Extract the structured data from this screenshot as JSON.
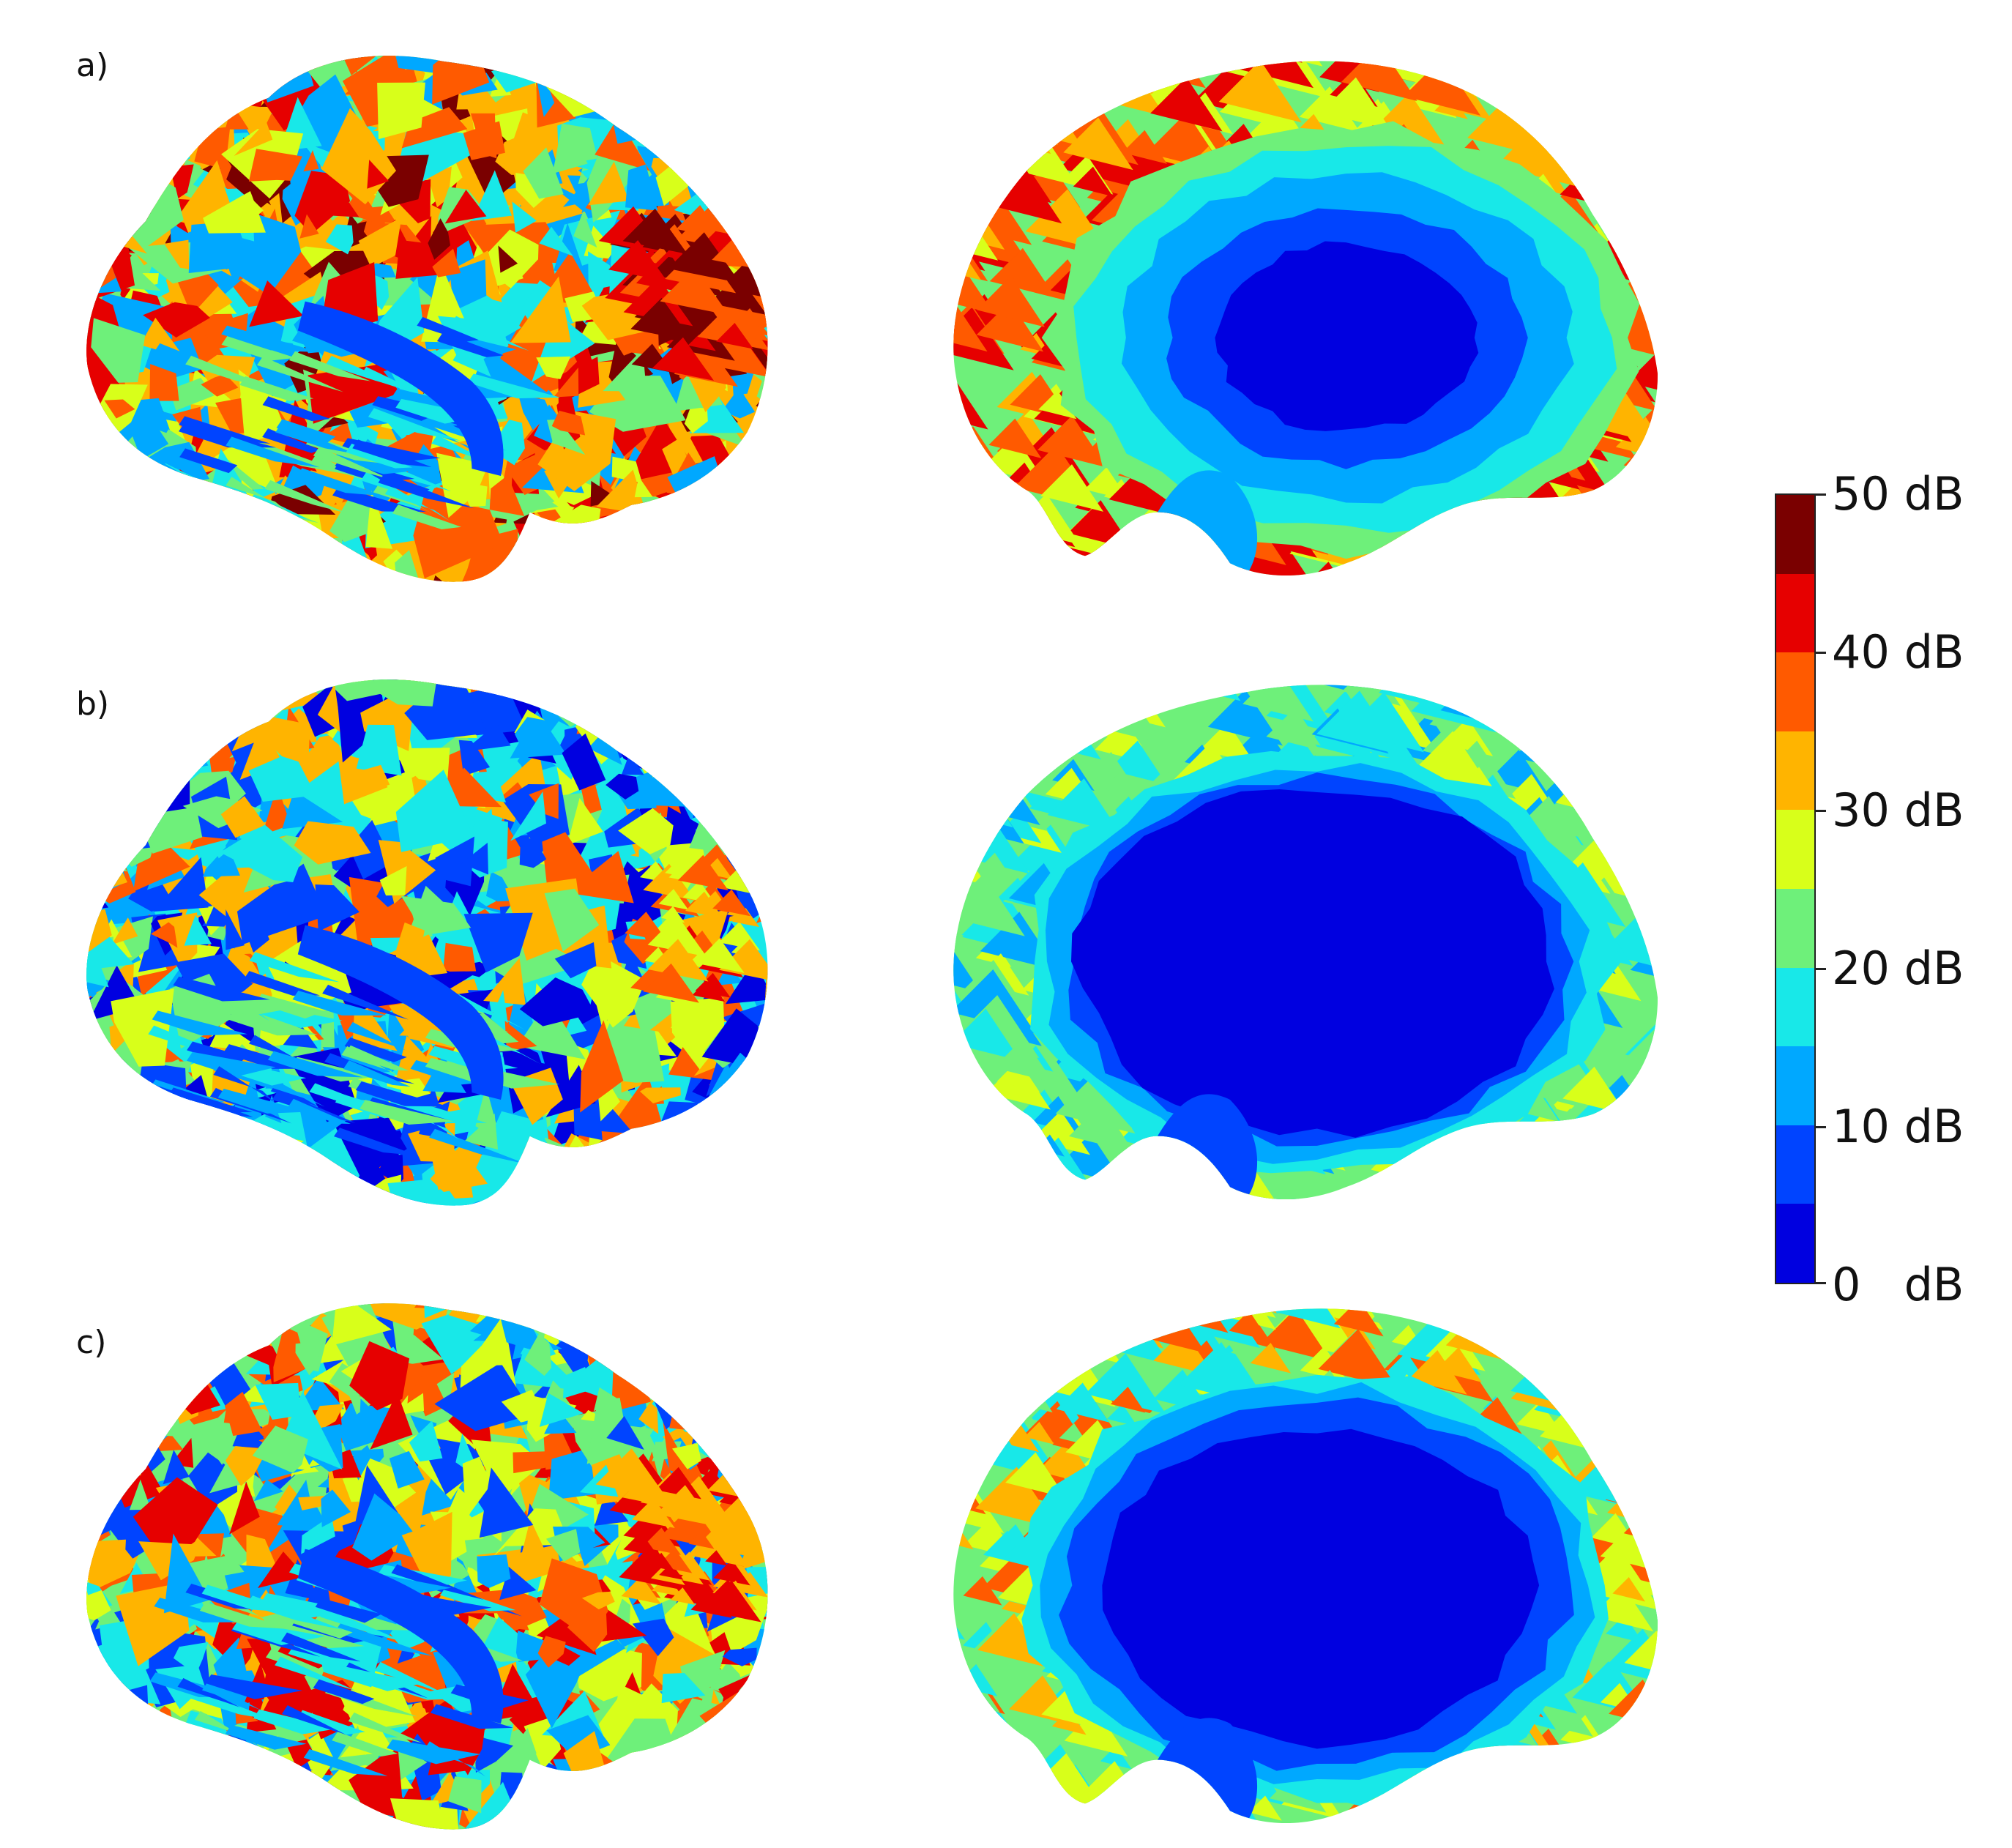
{
  "panels": [
    {
      "label": "a)"
    },
    {
      "label": "b)"
    },
    {
      "label": "c)"
    }
  ],
  "colorbar": {
    "colors": [
      "#7a0000",
      "#e60000",
      "#ff5a00",
      "#ffb400",
      "#d8ff1a",
      "#6ef07a",
      "#18e8e8",
      "#00a8ff",
      "#0044ff",
      "#0000e0"
    ],
    "tick_labels": [
      "50 dB",
      "40 dB",
      "30 dB",
      "20 dB",
      "10 dB",
      "0   dB"
    ]
  },
  "palette": {
    "deep_blue": "#0000e0",
    "blue": "#0044ff",
    "light_blue": "#00a8ff",
    "cyan": "#18e8e8",
    "green": "#6ef07a",
    "yellow": "#d8ff1a",
    "orange_yellow": "#ffb400",
    "orange": "#ff5a00",
    "red": "#e60000",
    "dark_red": "#7a0000"
  }
}
